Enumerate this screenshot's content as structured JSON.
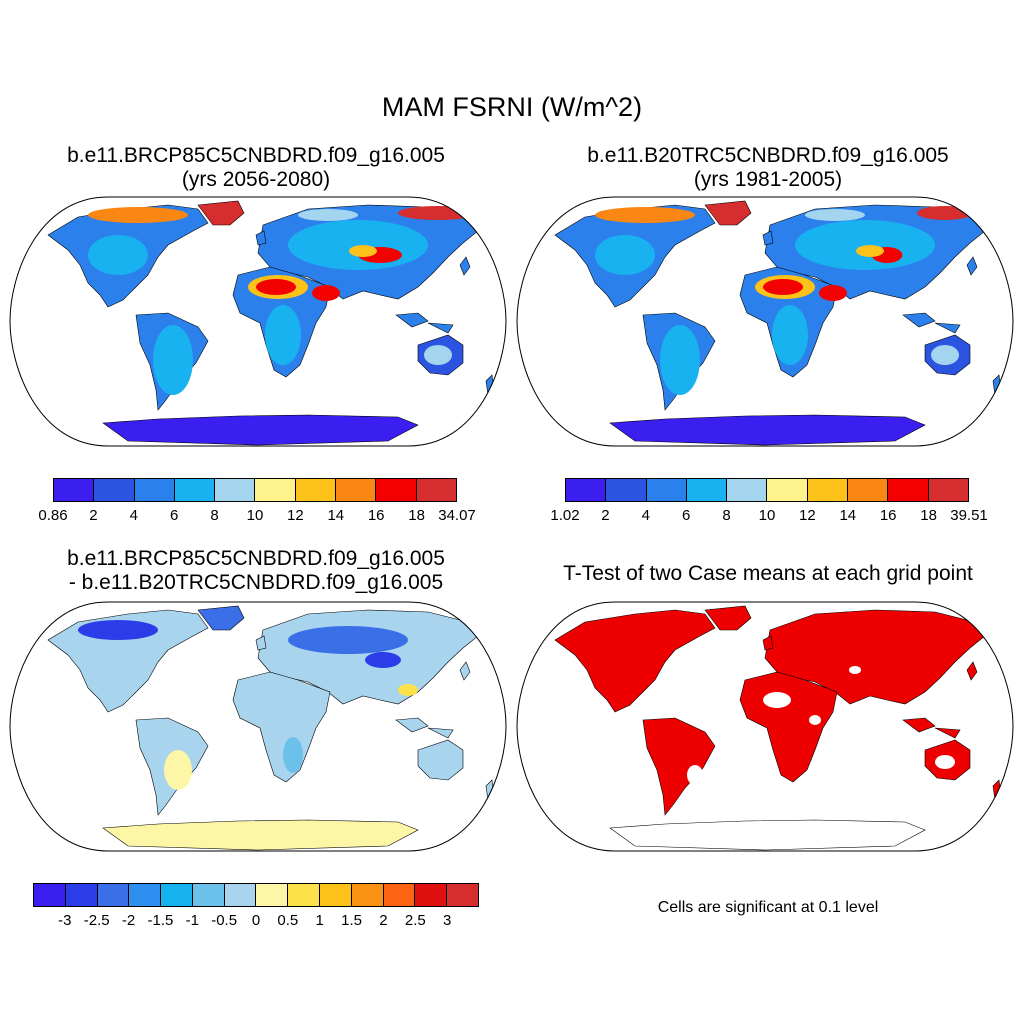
{
  "title": "MAM FSRNI (W/m^2)",
  "panels": [
    {
      "title_line1": "b.e11.BRCP85C5CNBDRD.f09_g16.005",
      "title_line2": "(yrs 2056-2080)"
    },
    {
      "title_line1": "b.e11.B20TRC5CNBDRD.f09_g16.005",
      "title_line2": "(yrs 1981-2005)"
    },
    {
      "title_line1": "b.e11.BRCP85C5CNBDRD.f09_g16.005",
      "title_line2": "- b.e11.B20TRC5CNBDRD.f09_g16.005"
    },
    {
      "title_line1": "T-Test of two Case means at each grid point",
      "note": "Cells are significant at 0.1 level"
    }
  ],
  "colorbars": [
    {
      "labels": [
        "0.86",
        "2",
        "4",
        "6",
        "8",
        "10",
        "12",
        "14",
        "16",
        "18",
        "34.07"
      ],
      "colors": [
        "#3b1ff0",
        "#2b54e0",
        "#2b80ec",
        "#19b2f0",
        "#a4d5ef",
        "#fdf28c",
        "#fcc219",
        "#fa8714",
        "#f30000",
        "#d62e2e"
      ]
    },
    {
      "labels": [
        "1.02",
        "2",
        "4",
        "6",
        "8",
        "10",
        "12",
        "14",
        "16",
        "18",
        "39.51"
      ],
      "colors": [
        "#3b1ff0",
        "#2b54e0",
        "#2b80ec",
        "#19b2f0",
        "#a4d5ef",
        "#fdf28c",
        "#fcc219",
        "#fa8714",
        "#f30000",
        "#d62e2e"
      ]
    },
    {
      "labels": [
        "-3",
        "-2.5",
        "-2",
        "-1.5",
        "-1",
        "-0.5",
        "0",
        "0.5",
        "1",
        "1.5",
        "2",
        "2.5",
        "3"
      ],
      "colors": [
        "#3b1ff0",
        "#2b3de8",
        "#3a6fe8",
        "#2f8ff0",
        "#16b2f0",
        "#6cc1ea",
        "#a8d4ee",
        "#fdf6a6",
        "#fde14a",
        "#fcc219",
        "#fa9314",
        "#fb6412",
        "#e01010",
        "#d62e2e"
      ]
    }
  ],
  "map_colors": {
    "p1": {
      "base": "#2b80ec",
      "land_mid": "#19b2f0",
      "light": "#a4d5ef",
      "desert_hot": "#f30000",
      "desert_warm": "#fcc219",
      "desert_orange": "#fa8714",
      "arctic": "#d62e2e",
      "cool": "#2b54e0",
      "south": "#3b1ff0"
    },
    "p2": {
      "base": "#2b80ec",
      "land_mid": "#19b2f0",
      "light": "#a4d5ef",
      "desert_hot": "#f30000",
      "desert_warm": "#fcc219",
      "desert_orange": "#fa8714",
      "arctic": "#d62e2e",
      "cool": "#2b54e0",
      "south": "#3b1ff0"
    },
    "p3": {
      "base": "#a8d4ee",
      "blue": "#6cc1ea",
      "deep": "#2b3de8",
      "mid": "#3a6fe8",
      "yellow": "#fdf6a6",
      "gold": "#fde14a"
    },
    "p4": {
      "sig": "#ee0000"
    }
  }
}
